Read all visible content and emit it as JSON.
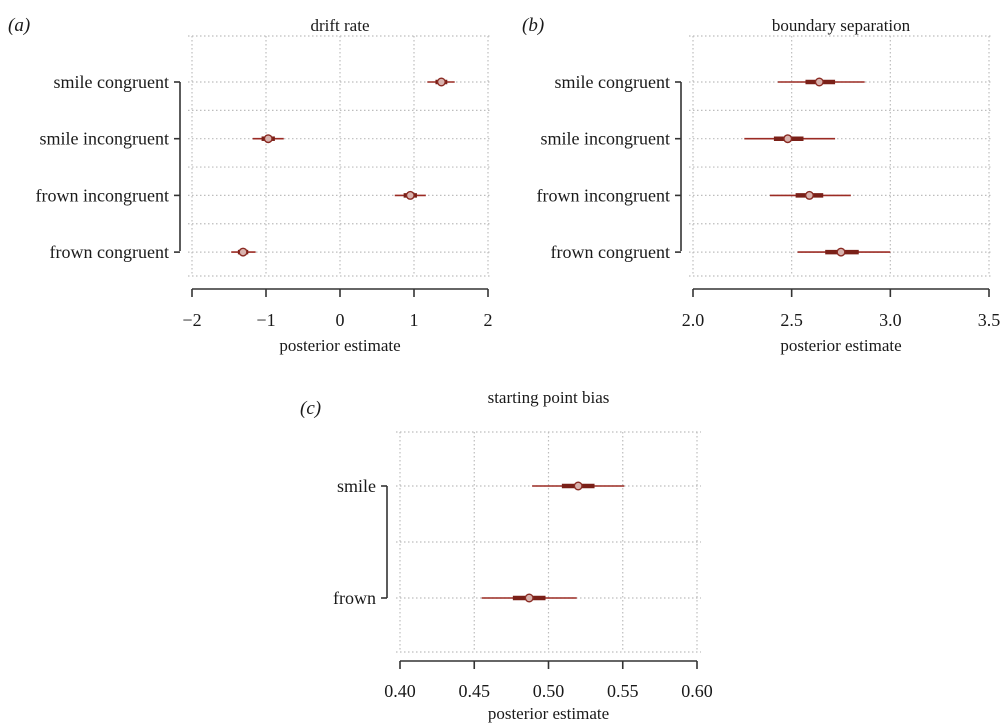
{
  "colors": {
    "interval": "#9b2b24",
    "interval_thick": "#7a2018",
    "point_edge": "#8a2a22",
    "grid": "#bdbdbd",
    "axis": "#333333"
  },
  "chart_data": [
    {
      "panel": "(a)",
      "type": "interval",
      "title": "drift rate",
      "xlabel": "posterior estimate",
      "xlim": [
        -2,
        2
      ],
      "xticks": [
        -2,
        -1,
        0,
        1,
        2
      ],
      "xtick_labels": [
        "−2",
        "−1",
        "0",
        "1",
        "2"
      ],
      "grid": true,
      "categories": [
        "smile congruent",
        "smile incongruent",
        "frown incongruent",
        "frown congruent"
      ],
      "points": [
        {
          "label": "smile congruent",
          "mean": 1.37,
          "inner": [
            1.29,
            1.45
          ],
          "outer": [
            1.18,
            1.55
          ]
        },
        {
          "label": "smile incongruent",
          "mean": -0.97,
          "inner": [
            -1.06,
            -0.88
          ],
          "outer": [
            -1.18,
            -0.76
          ]
        },
        {
          "label": "frown incongruent",
          "mean": 0.95,
          "inner": [
            0.86,
            1.04
          ],
          "outer": [
            0.74,
            1.16
          ]
        },
        {
          "label": "frown congruent",
          "mean": -1.31,
          "inner": [
            -1.38,
            -1.24
          ],
          "outer": [
            -1.47,
            -1.14
          ]
        }
      ]
    },
    {
      "panel": "(b)",
      "type": "interval",
      "title": "boundary separation",
      "xlabel": "posterior estimate",
      "xlim": [
        2.0,
        3.5
      ],
      "xticks": [
        2.0,
        2.5,
        3.0,
        3.5
      ],
      "xtick_labels": [
        "2.0",
        "2.5",
        "3.0",
        "3.5"
      ],
      "grid": true,
      "categories": [
        "smile congruent",
        "smile incongruent",
        "frown incongruent",
        "frown congruent"
      ],
      "points": [
        {
          "label": "smile congruent",
          "mean": 2.64,
          "inner": [
            2.57,
            2.72
          ],
          "outer": [
            2.43,
            2.87
          ]
        },
        {
          "label": "smile incongruent",
          "mean": 2.48,
          "inner": [
            2.41,
            2.56
          ],
          "outer": [
            2.26,
            2.72
          ]
        },
        {
          "label": "frown incongruent",
          "mean": 2.59,
          "inner": [
            2.52,
            2.66
          ],
          "outer": [
            2.39,
            2.8
          ]
        },
        {
          "label": "frown congruent",
          "mean": 2.75,
          "inner": [
            2.67,
            2.84
          ],
          "outer": [
            2.53,
            3.0
          ]
        }
      ]
    },
    {
      "panel": "(c)",
      "type": "interval",
      "title": "starting point bias",
      "xlabel": "posterior estimate",
      "xlim": [
        0.4,
        0.6
      ],
      "xticks": [
        0.4,
        0.45,
        0.5,
        0.55,
        0.6
      ],
      "xtick_labels": [
        "0.40",
        "0.45",
        "0.50",
        "0.55",
        "0.60"
      ],
      "grid": true,
      "categories": [
        "smile",
        "frown"
      ],
      "points": [
        {
          "label": "smile",
          "mean": 0.52,
          "inner": [
            0.509,
            0.531
          ],
          "outer": [
            0.489,
            0.551
          ]
        },
        {
          "label": "frown",
          "mean": 0.487,
          "inner": [
            0.476,
            0.498
          ],
          "outer": [
            0.455,
            0.519
          ]
        }
      ]
    }
  ]
}
